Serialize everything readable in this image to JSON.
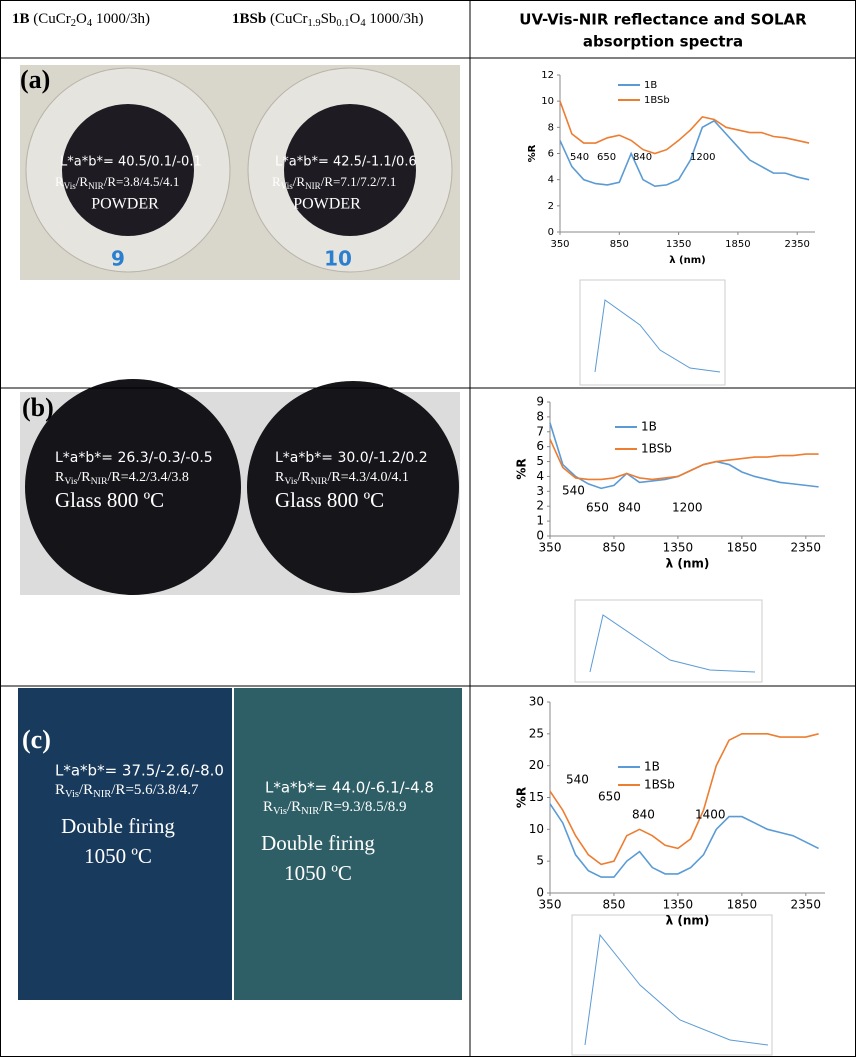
{
  "header": {
    "samples": [
      {
        "name": "1B",
        "formula": [
          " (CuCr",
          "2",
          "O",
          "4",
          " 1000/3h)"
        ]
      },
      {
        "name": "1BSb",
        "formula": [
          " (CuCr",
          "1.9",
          "Sb",
          "0.1",
          "O",
          "4",
          " 1000/3h)"
        ]
      }
    ],
    "spectra_title": [
      "UV-Vis-NIR reflectance and SOLAR",
      "absorption spectra"
    ]
  },
  "rows": [
    {
      "label": "(a)",
      "samples": [
        {
          "lab": "L*a*b*=  40.5/0.1/-0.1",
          "r": [
            "R",
            "Vis",
            "/R",
            "NIR",
            "/R=3.8/4.5/4.1"
          ],
          "desc": [
            "POWDER"
          ],
          "mark": "9"
        },
        {
          "lab": "L*a*b*=  42.5/-1.1/0.6",
          "r": [
            "R",
            "Vis",
            "/R",
            "NIR",
            "/R=7.1/7.2/7.1"
          ],
          "desc": [
            "POWDER"
          ],
          "mark": "10"
        }
      ]
    },
    {
      "label": "(b)",
      "samples": [
        {
          "lab": "L*a*b*=  26.3/-0.3/-0.5",
          "r": [
            "R",
            "Vis",
            "/R",
            "NIR",
            "/R=4.2/3.4/3.8"
          ],
          "desc": [
            "Glass 800 ºC"
          ]
        },
        {
          "lab": "L*a*b*=  30.0/-1.2/0.2",
          "r": [
            "R",
            "Vis",
            "/R",
            "NIR",
            "/R=4.3/4.0/4.1"
          ],
          "desc": [
            "Glass 800 ºC"
          ]
        }
      ]
    },
    {
      "label": "(c)",
      "samples": [
        {
          "lab": "L*a*b*=  37.5/-2.6/-8.0",
          "r": [
            "R",
            "Vis",
            "/R",
            "NIR",
            "/R=5.6/3.8/4.7"
          ],
          "desc": [
            "Double firing",
            "1050 ºC"
          ]
        },
        {
          "lab": "L*a*b*=  44.0/-6.1/-4.8",
          "r": [
            "R",
            "Vis",
            "/R",
            "NIR",
            "/R=9.3/8.5/8.9"
          ],
          "desc": [
            "Double firing",
            "1050 ºC"
          ]
        }
      ]
    }
  ],
  "chart_data": [
    {
      "type": "line",
      "xlabel": "λ (nm)",
      "ylabel": "%R",
      "xlim": [
        350,
        2500
      ],
      "xticks": [
        350,
        850,
        1350,
        1850,
        2350
      ],
      "ylim": [
        0,
        12
      ],
      "yticks": [
        0,
        2,
        4,
        6,
        8,
        10,
        12
      ],
      "annotations": [
        "540",
        "650",
        "840",
        "1200"
      ],
      "x": [
        350,
        450,
        550,
        650,
        750,
        850,
        950,
        1050,
        1150,
        1250,
        1350,
        1450,
        1550,
        1650,
        1750,
        1850,
        1950,
        2050,
        2150,
        2250,
        2350,
        2450
      ],
      "series": [
        {
          "name": "1B",
          "color": "#5b9bd5",
          "values": [
            7.0,
            5.0,
            4.0,
            3.7,
            3.6,
            3.8,
            6.0,
            4.0,
            3.5,
            3.6,
            4.0,
            5.5,
            8.0,
            8.5,
            7.5,
            6.5,
            5.5,
            5.0,
            4.5,
            4.5,
            4.2,
            4.0
          ]
        },
        {
          "name": "1BSb",
          "color": "#ed7d31",
          "values": [
            10,
            7.5,
            6.8,
            6.8,
            7.2,
            7.4,
            7.0,
            6.3,
            6.0,
            6.3,
            7.0,
            7.8,
            8.8,
            8.6,
            8.0,
            7.8,
            7.6,
            7.6,
            7.3,
            7.2,
            7.0,
            6.8
          ]
        }
      ]
    },
    {
      "type": "line",
      "xlabel": "λ (nm)",
      "ylabel": "%R",
      "xlim": [
        350,
        2500
      ],
      "xticks": [
        350,
        850,
        1350,
        1850,
        2350
      ],
      "ylim": [
        0,
        9
      ],
      "yticks": [
        0,
        1,
        2,
        3,
        4,
        5,
        6,
        7,
        8,
        9
      ],
      "annotations": [
        "540",
        "650",
        "840",
        "1200"
      ],
      "x": [
        350,
        450,
        550,
        650,
        750,
        850,
        950,
        1050,
        1150,
        1250,
        1350,
        1450,
        1550,
        1650,
        1750,
        1850,
        1950,
        2050,
        2150,
        2250,
        2350,
        2450
      ],
      "series": [
        {
          "name": "1B",
          "color": "#5b9bd5",
          "values": [
            7.6,
            4.8,
            4.0,
            3.5,
            3.2,
            3.4,
            4.2,
            3.6,
            3.7,
            3.8,
            4.0,
            4.4,
            4.8,
            5.0,
            4.8,
            4.3,
            4.0,
            3.8,
            3.6,
            3.5,
            3.4,
            3.3
          ]
        },
        {
          "name": "1BSb",
          "color": "#ed7d31",
          "values": [
            6.5,
            4.6,
            3.9,
            3.8,
            3.8,
            3.9,
            4.2,
            3.9,
            3.8,
            3.9,
            4.0,
            4.4,
            4.8,
            5.0,
            5.1,
            5.2,
            5.3,
            5.3,
            5.4,
            5.4,
            5.5,
            5.5
          ]
        }
      ]
    },
    {
      "type": "line",
      "xlabel": "λ (nm)",
      "ylabel": "%R",
      "xlim": [
        350,
        2500
      ],
      "xticks": [
        350,
        850,
        1350,
        1850,
        2350
      ],
      "ylim": [
        0,
        30
      ],
      "yticks": [
        0,
        5,
        10,
        15,
        20,
        25,
        30
      ],
      "annotations": [
        "540",
        "650",
        "840",
        "1400"
      ],
      "x": [
        350,
        450,
        550,
        650,
        750,
        850,
        950,
        1050,
        1150,
        1250,
        1350,
        1450,
        1550,
        1650,
        1750,
        1850,
        1950,
        2050,
        2150,
        2250,
        2350,
        2450
      ],
      "series": [
        {
          "name": "1B",
          "color": "#5b9bd5",
          "values": [
            14,
            11,
            6,
            3.5,
            2.5,
            2.5,
            5,
            6.5,
            4,
            3,
            3,
            4,
            6,
            10,
            12,
            12,
            11,
            10,
            9.5,
            9,
            8,
            7
          ]
        },
        {
          "name": "1BSb",
          "color": "#ed7d31",
          "values": [
            16,
            13,
            9,
            6,
            4.5,
            5,
            9,
            10,
            9,
            7.5,
            7,
            8.5,
            13,
            20,
            24,
            25,
            25,
            25,
            24.5,
            24.5,
            24.5,
            25
          ]
        }
      ]
    }
  ]
}
